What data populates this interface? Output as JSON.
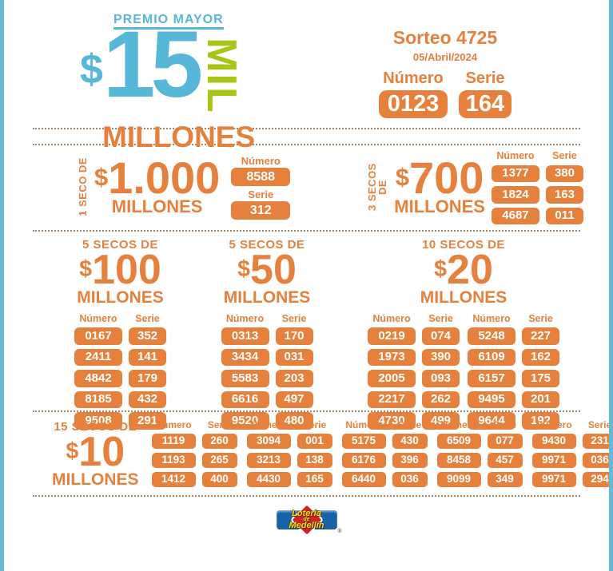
{
  "labels": {
    "numero": "Número",
    "serie": "Serie"
  },
  "header": {
    "premio_mayor": "PREMIO MAYOR",
    "amount": {
      "dollar": "$",
      "main": "15",
      "mil": "MIL",
      "millones": "MILLONES"
    },
    "sorteo": "Sorteo 4725",
    "fecha": "05/Abril/2024",
    "numero_value": "0123",
    "serie_value": "164"
  },
  "sections": {
    "seco_1000": {
      "prefix": "1 SECO DE",
      "dollar": "$",
      "amount": "1.000",
      "millones": "MILLONES",
      "numero": "8588",
      "serie": "312"
    },
    "secos_700": {
      "prefix": "3 SECOS DE",
      "dollar": "$",
      "amount": "700",
      "millones": "MILLONES",
      "rows": [
        [
          "1377",
          "380"
        ],
        [
          "1824",
          "163"
        ],
        [
          "4687",
          "011"
        ]
      ]
    },
    "secos_100": {
      "title": "5 SECOS DE",
      "dollar": "$",
      "amount": "100",
      "millones": "MILLONES",
      "groups": [
        [
          [
            "0167",
            "352"
          ],
          [
            "2411",
            "141"
          ],
          [
            "4842",
            "179"
          ],
          [
            "8185",
            "432"
          ],
          [
            "9508",
            "291"
          ]
        ]
      ]
    },
    "secos_50": {
      "title": "5 SECOS DE",
      "dollar": "$",
      "amount": "50",
      "millones": "MILLONES",
      "groups": [
        [
          [
            "0313",
            "170"
          ],
          [
            "3434",
            "031"
          ],
          [
            "5583",
            "203"
          ],
          [
            "6616",
            "497"
          ],
          [
            "9520",
            "480"
          ]
        ]
      ]
    },
    "secos_20": {
      "title": "10 SECOS DE",
      "dollar": "$",
      "amount": "20",
      "millones": "MILLONES",
      "groups": [
        [
          [
            "0219",
            "074"
          ],
          [
            "1973",
            "390"
          ],
          [
            "2005",
            "093"
          ],
          [
            "2217",
            "262"
          ],
          [
            "4730",
            "499"
          ]
        ],
        [
          [
            "5248",
            "227"
          ],
          [
            "6109",
            "162"
          ],
          [
            "6157",
            "175"
          ],
          [
            "9495",
            "201"
          ],
          [
            "9644",
            "192"
          ]
        ]
      ]
    },
    "secos_10": {
      "title": "15 SECOS DE",
      "dollar": "$",
      "amount": "10",
      "millones": "MILLONES",
      "groups": [
        [
          [
            "1119",
            "260"
          ],
          [
            "1193",
            "265"
          ],
          [
            "1412",
            "400"
          ]
        ],
        [
          [
            "3094",
            "001"
          ],
          [
            "3213",
            "138"
          ],
          [
            "4430",
            "165"
          ]
        ],
        [
          [
            "5175",
            "430"
          ],
          [
            "6176",
            "396"
          ],
          [
            "6440",
            "036"
          ]
        ],
        [
          [
            "6509",
            "077"
          ],
          [
            "8458",
            "457"
          ],
          [
            "9099",
            "349"
          ]
        ],
        [
          [
            "9430",
            "231"
          ],
          [
            "9971",
            "036"
          ],
          [
            "9971",
            "294"
          ]
        ]
      ]
    }
  },
  "logo": {
    "line1": "Lotería",
    "line2": "de",
    "line3": "Medellín",
    "reg": "®"
  },
  "colors": {
    "orange": "#e5813c",
    "blue": "#56b7d8",
    "green": "#a6c617",
    "border_teal": "#6ab7d1",
    "logo_blue": "#1763a8",
    "logo_red": "#d42127",
    "logo_yellow": "#ffd91a"
  }
}
